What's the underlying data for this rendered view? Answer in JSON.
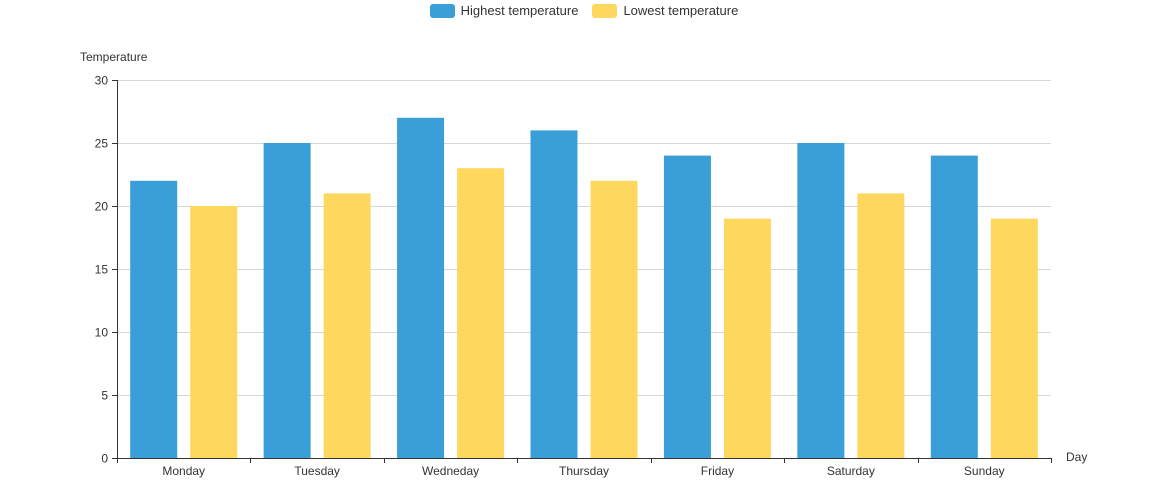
{
  "chart_data": {
    "type": "bar",
    "title": "",
    "xlabel": "Day",
    "ylabel": "Temperature",
    "ylim": [
      0,
      30
    ],
    "yticks": [
      0,
      5,
      10,
      15,
      20,
      25,
      30
    ],
    "categories": [
      "Monday",
      "Tuesday",
      "Wedneday",
      "Thursday",
      "Friday",
      "Saturday",
      "Sunday"
    ],
    "series": [
      {
        "name": "Highest temperature",
        "color": "#3a9fd8",
        "values": [
          22,
          25,
          27,
          26,
          24,
          25,
          24
        ]
      },
      {
        "name": "Lowest temperature",
        "color": "#fed85e",
        "values": [
          20,
          21,
          23,
          22,
          19,
          21,
          19
        ]
      }
    ],
    "grid": true,
    "legend_position": "top-center"
  }
}
